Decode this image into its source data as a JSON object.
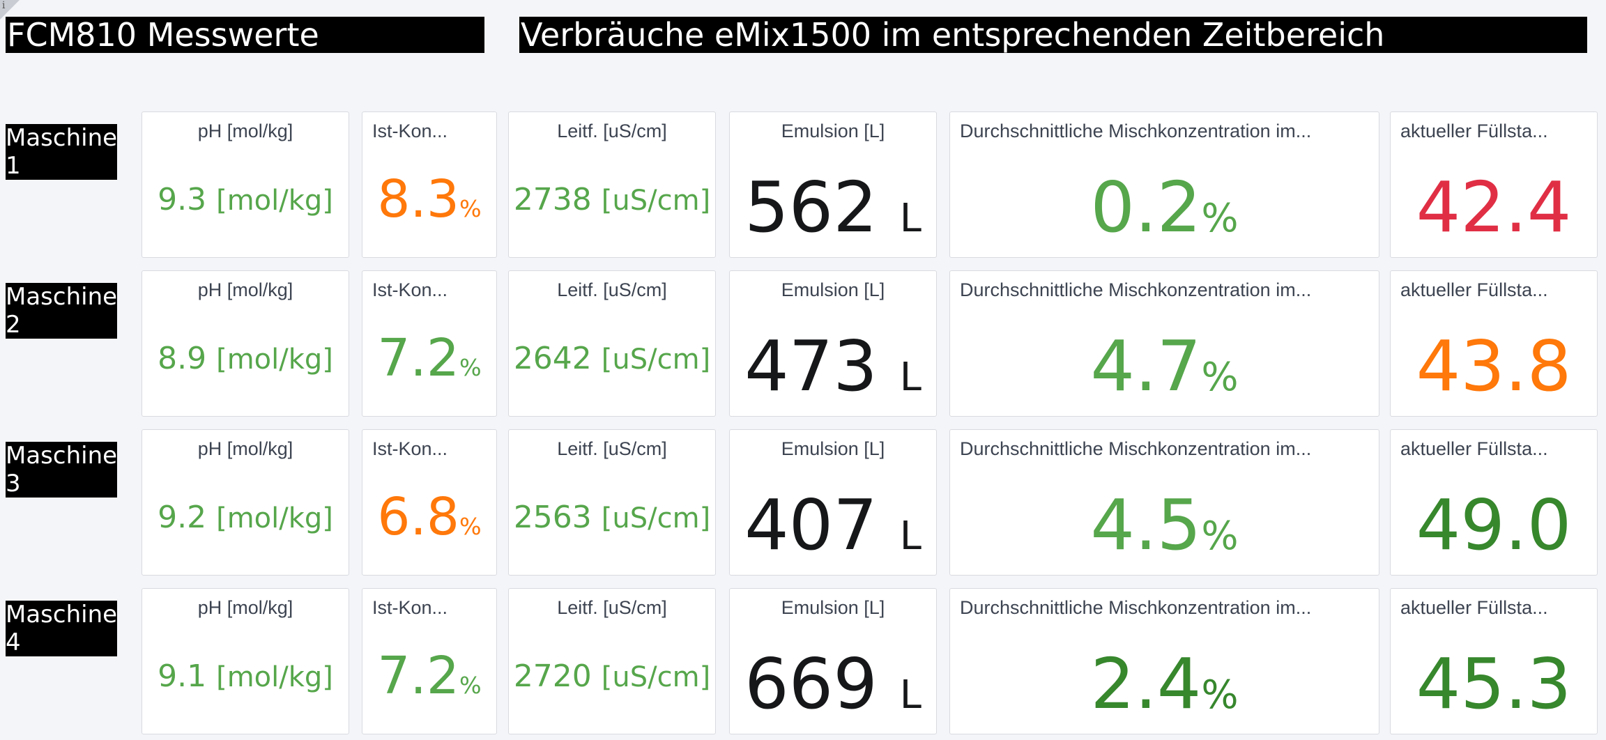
{
  "titles": {
    "left": "FCM810 Messwerte",
    "right": "Verbräuche eMix1500 im entsprechenden Zeitbereich"
  },
  "info_icon": "i",
  "colors": {
    "green": "#56a64b",
    "orange": "#ff780a",
    "dark": "#161719",
    "darkgreen": "#37872d",
    "red": "#e02f44"
  },
  "panel_titles": {
    "ph": "pH [mol/kg]",
    "ist": "Ist-Kon...",
    "leitf": "Leitf. [uS/cm]",
    "emulsion": "Emulsion [L]",
    "misch": "Durchschnittliche Mischkonzentration im...",
    "fuell": "aktueller Füllsta..."
  },
  "units": {
    "ph": "[mol/kg]",
    "ist": "%",
    "leitf": "[uS/cm]",
    "emulsion": "L",
    "misch": "%"
  },
  "machines": [
    {
      "label_line1": "Maschine",
      "label_line2": "1",
      "ph": "9.3",
      "ist": "8.3",
      "leitf": "2738",
      "emulsion": "562",
      "misch": "0.2",
      "fuell": "42.4"
    },
    {
      "label_line1": "Maschine",
      "label_line2": "2",
      "ph": "8.9",
      "ist": "7.2",
      "leitf": "2642",
      "emulsion": "473",
      "misch": "4.7",
      "fuell": "43.8"
    },
    {
      "label_line1": "Maschine",
      "label_line2": "3",
      "ph": "9.2",
      "ist": "6.8",
      "leitf": "2563",
      "emulsion": "407",
      "misch": "4.5",
      "fuell": "49.0"
    },
    {
      "label_line1": "Maschine",
      "label_line2": "4",
      "ph": "9.1",
      "ist": "7.2",
      "leitf": "2720",
      "emulsion": "669",
      "misch": "2.4",
      "fuell": "45.3"
    }
  ]
}
